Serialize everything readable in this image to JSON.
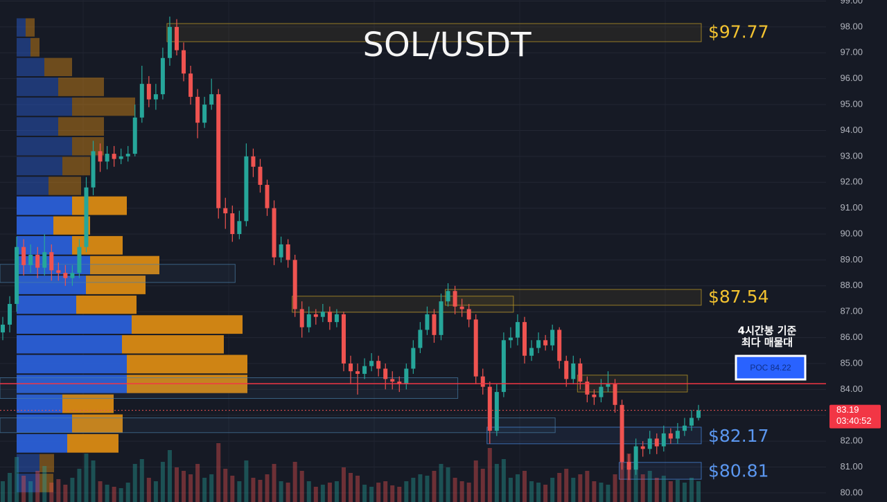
{
  "chart_data": {
    "type": "candlestick",
    "title": "SOL/USDT",
    "ylim": [
      79.65,
      99.04
    ],
    "yticks": [
      {
        "value": 80,
        "label": "80.00"
      },
      {
        "value": 81,
        "label": "81.00"
      },
      {
        "value": 82,
        "label": "82.00"
      },
      {
        "value": 83,
        "label": "83.00"
      },
      {
        "value": 84,
        "label": "84.00"
      },
      {
        "value": 85,
        "label": "85.00"
      },
      {
        "value": 86,
        "label": "86.00"
      },
      {
        "value": 87,
        "label": "87.00"
      },
      {
        "value": 88,
        "label": "88.00"
      },
      {
        "value": 89,
        "label": "89.00"
      },
      {
        "value": 90,
        "label": "90.00"
      },
      {
        "value": 91,
        "label": "91.00"
      },
      {
        "value": 92,
        "label": "92.00"
      },
      {
        "value": 93,
        "label": "93.00"
      },
      {
        "value": 94,
        "label": "94.00"
      },
      {
        "value": 95,
        "label": "95.00"
      },
      {
        "value": 96,
        "label": "96.00"
      },
      {
        "value": 97,
        "label": "97.00"
      },
      {
        "value": 98,
        "label": "98.00"
      },
      {
        "value": 99,
        "label": "99.00"
      }
    ],
    "grid": true,
    "up_color": "#26a69a",
    "down_color": "#ef5350",
    "candles": [
      [
        86.2,
        86.8,
        85.9,
        86.5
      ],
      [
        86.5,
        87.6,
        86.2,
        87.3
      ],
      [
        87.3,
        89.9,
        87.0,
        89.5
      ],
      [
        89.5,
        89.8,
        88.4,
        88.8
      ],
      [
        88.8,
        89.6,
        88.5,
        89.2
      ],
      [
        89.2,
        89.5,
        88.3,
        88.7
      ],
      [
        88.7,
        90.0,
        88.4,
        89.3
      ],
      [
        89.3,
        89.6,
        88.2,
        88.6
      ],
      [
        88.6,
        88.9,
        88.2,
        88.5
      ],
      [
        88.5,
        88.8,
        88.0,
        88.3
      ],
      [
        88.3,
        88.8,
        88.0,
        88.5
      ],
      [
        88.5,
        89.8,
        88.3,
        89.5
      ],
      [
        89.5,
        92.2,
        89.3,
        91.8
      ],
      [
        91.8,
        93.6,
        91.5,
        93.2
      ],
      [
        93.2,
        93.5,
        92.4,
        92.8
      ],
      [
        92.8,
        93.4,
        92.5,
        93.1
      ],
      [
        93.1,
        93.4,
        92.6,
        92.9
      ],
      [
        92.9,
        93.3,
        92.7,
        93.0
      ],
      [
        93.0,
        93.4,
        92.8,
        93.1
      ],
      [
        93.1,
        95.0,
        93.0,
        94.5
      ],
      [
        94.5,
        96.5,
        94.3,
        95.8
      ],
      [
        95.8,
        96.1,
        94.9,
        95.2
      ],
      [
        95.2,
        95.8,
        94.8,
        95.4
      ],
      [
        95.4,
        97.2,
        95.2,
        96.8
      ],
      [
        96.8,
        98.4,
        96.5,
        98.0
      ],
      [
        98.0,
        98.3,
        96.9,
        97.1
      ],
      [
        97.1,
        97.4,
        95.9,
        96.2
      ],
      [
        96.2,
        96.5,
        95.0,
        95.3
      ],
      [
        95.3,
        95.6,
        93.7,
        94.3
      ],
      [
        94.3,
        95.3,
        94.1,
        95.0
      ],
      [
        95.0,
        96.0,
        94.8,
        95.4
      ],
      [
        95.4,
        95.6,
        90.6,
        91.0
      ],
      [
        91.0,
        91.4,
        90.2,
        90.8
      ],
      [
        90.8,
        91.1,
        89.7,
        90.0
      ],
      [
        90.0,
        90.9,
        89.8,
        90.5
      ],
      [
        90.5,
        93.5,
        90.3,
        93.0
      ],
      [
        93.0,
        93.3,
        92.2,
        92.6
      ],
      [
        92.6,
        92.9,
        91.6,
        91.9
      ],
      [
        91.9,
        92.1,
        90.7,
        91.0
      ],
      [
        91.0,
        91.3,
        88.8,
        89.1
      ],
      [
        89.1,
        89.9,
        88.9,
        89.6
      ],
      [
        89.6,
        89.8,
        88.7,
        89.0
      ],
      [
        89.0,
        89.2,
        86.8,
        87.1
      ],
      [
        87.1,
        87.4,
        86.0,
        86.4
      ],
      [
        86.4,
        87.2,
        86.2,
        86.9
      ],
      [
        86.9,
        87.1,
        86.5,
        86.8
      ],
      [
        86.8,
        87.3,
        86.6,
        87.0
      ],
      [
        87.0,
        87.2,
        86.3,
        86.6
      ],
      [
        86.6,
        87.1,
        86.4,
        86.9
      ],
      [
        86.9,
        87.0,
        84.7,
        85.0
      ],
      [
        85.0,
        85.3,
        84.2,
        84.7
      ],
      [
        84.7,
        85.0,
        83.8,
        84.6
      ],
      [
        84.6,
        85.2,
        84.4,
        84.9
      ],
      [
        84.9,
        85.4,
        84.7,
        85.1
      ],
      [
        85.1,
        85.3,
        84.5,
        84.8
      ],
      [
        84.8,
        85.0,
        84.0,
        84.4
      ],
      [
        84.4,
        84.7,
        84.0,
        84.3
      ],
      [
        84.3,
        84.5,
        83.9,
        84.2
      ],
      [
        84.2,
        85.0,
        84.0,
        84.8
      ],
      [
        84.8,
        85.9,
        84.6,
        85.6
      ],
      [
        85.6,
        86.6,
        85.4,
        86.3
      ],
      [
        86.3,
        87.2,
        86.1,
        86.9
      ],
      [
        86.9,
        87.1,
        85.8,
        86.1
      ],
      [
        86.1,
        87.7,
        85.9,
        87.4
      ],
      [
        87.4,
        88.1,
        87.2,
        87.8
      ],
      [
        87.8,
        88.0,
        86.9,
        87.2
      ],
      [
        87.2,
        87.5,
        86.8,
        87.1
      ],
      [
        87.1,
        87.3,
        86.4,
        86.7
      ],
      [
        86.7,
        86.9,
        84.2,
        84.5
      ],
      [
        84.5,
        84.8,
        83.8,
        84.1
      ],
      [
        84.1,
        84.3,
        81.9,
        82.4
      ],
      [
        82.4,
        84.2,
        82.2,
        83.9
      ],
      [
        83.9,
        86.2,
        83.7,
        85.9
      ],
      [
        85.9,
        86.4,
        85.6,
        86.0
      ],
      [
        86.0,
        86.9,
        85.7,
        86.6
      ],
      [
        86.6,
        86.8,
        85.0,
        85.3
      ],
      [
        85.3,
        85.9,
        85.1,
        85.6
      ],
      [
        85.6,
        86.2,
        85.4,
        85.9
      ],
      [
        85.9,
        86.1,
        85.5,
        85.7
      ],
      [
        85.7,
        86.5,
        85.5,
        86.3
      ],
      [
        86.3,
        86.4,
        84.8,
        85.1
      ],
      [
        85.1,
        85.3,
        84.1,
        84.4
      ],
      [
        84.4,
        85.3,
        84.2,
        85.0
      ],
      [
        85.0,
        85.2,
        84.0,
        84.3
      ],
      [
        84.3,
        84.5,
        83.5,
        83.8
      ],
      [
        83.8,
        84.0,
        83.4,
        83.7
      ],
      [
        83.7,
        84.4,
        83.5,
        84.1
      ],
      [
        84.1,
        84.7,
        83.9,
        84.2
      ],
      [
        84.2,
        84.4,
        83.1,
        83.4
      ],
      [
        83.4,
        83.6,
        80.9,
        81.2
      ],
      [
        81.2,
        81.5,
        80.5,
        80.9
      ],
      [
        80.9,
        82.1,
        80.7,
        81.8
      ],
      [
        81.8,
        82.0,
        81.4,
        81.7
      ],
      [
        81.7,
        82.4,
        81.5,
        82.1
      ],
      [
        82.1,
        82.3,
        81.5,
        81.8
      ],
      [
        81.8,
        82.6,
        81.6,
        82.3
      ],
      [
        82.3,
        82.5,
        81.9,
        82.1
      ],
      [
        82.1,
        82.7,
        81.9,
        82.4
      ],
      [
        82.4,
        82.9,
        82.2,
        82.6
      ],
      [
        82.6,
        83.2,
        82.4,
        82.9
      ],
      [
        82.9,
        83.4,
        82.8,
        83.19
      ]
    ],
    "volumes": [
      30,
      42,
      65,
      38,
      30,
      45,
      52,
      28,
      33,
      25,
      35,
      48,
      70,
      60,
      30,
      25,
      22,
      20,
      28,
      55,
      62,
      35,
      30,
      58,
      75,
      50,
      45,
      40,
      55,
      35,
      40,
      85,
      48,
      38,
      30,
      60,
      35,
      32,
      40,
      55,
      30,
      28,
      58,
      45,
      30,
      22,
      25,
      28,
      30,
      50,
      42,
      38,
      25,
      22,
      28,
      30,
      24,
      22,
      30,
      35,
      40,
      38,
      45,
      55,
      50,
      35,
      30,
      28,
      60,
      48,
      78,
      55,
      62,
      35,
      40,
      45,
      30,
      28,
      25,
      35,
      42,
      48,
      35,
      40,
      45,
      30,
      28,
      25,
      40,
      80,
      70,
      55,
      40,
      45,
      35,
      38,
      30,
      32,
      28,
      35,
      30
    ],
    "profile": {
      "bins": [
        80.0,
        80.77,
        81.53,
        82.3,
        83.06,
        83.83,
        84.59,
        85.36,
        86.12,
        86.89,
        87.65,
        88.42,
        89.18,
        89.95,
        90.71,
        91.48,
        92.24,
        93.01,
        93.77,
        94.54,
        95.3,
        96.07,
        96.83,
        97.6,
        98.36
      ],
      "buy": [
        33,
        33,
        73,
        80,
        66,
        159,
        159,
        152,
        166,
        86,
        100,
        106,
        80,
        53,
        80,
        46,
        66,
        80,
        60,
        80,
        60,
        40,
        20,
        13
      ],
      "sell": [
        20,
        21,
        74,
        73,
        74,
        174,
        174,
        147,
        160,
        87,
        86,
        100,
        73,
        53,
        79,
        47,
        40,
        46,
        66,
        91,
        66,
        40,
        13,
        13
      ],
      "buy_color": "#2a5fd6",
      "sell_color": "#d98a13",
      "value_area": [
        81.53,
        91.48
      ]
    },
    "zones": [
      {
        "label": "$97.77",
        "value": 97.77,
        "low": 97.43,
        "high": 98.13,
        "start": 24,
        "end": 100,
        "color": "#c9a227"
      },
      {
        "label": "$87.54",
        "value": 87.54,
        "low": 87.25,
        "high": 87.86,
        "start": 64,
        "end": 100,
        "color": "#c9a227"
      },
      {
        "low": 83.9,
        "high": 84.55,
        "start": 83,
        "end": 98,
        "color": "#c9a227"
      },
      {
        "low": 86.98,
        "high": 87.6,
        "start": 42,
        "end": 73,
        "color": "#c9a227"
      },
      {
        "label": "$82.17",
        "value": 82.17,
        "low": 81.9,
        "high": 82.54,
        "start": 70,
        "end": 100,
        "color": "#4a8fe8"
      },
      {
        "label": "$80.81",
        "value": 80.81,
        "low": 80.53,
        "high": 81.18,
        "start": 89,
        "end": 100,
        "color": "#4a8fe8"
      },
      {
        "low": 88.13,
        "high": 88.83,
        "start": 0,
        "end": 33,
        "color": "#4a7fa8"
      },
      {
        "low": 83.65,
        "high": 84.45,
        "start": 0,
        "end": 65,
        "color": "#4a7fa8"
      },
      {
        "low": 82.33,
        "high": 82.9,
        "start": 0,
        "end": 79,
        "color": "#4a7fa8"
      }
    ],
    "poc": {
      "label": "POC 84.22",
      "value": 84.22,
      "color": "#f23645"
    },
    "poc_note": [
      "4시간봉 기준",
      "최다 매물대"
    ],
    "current_price": 83.19,
    "countdown": "03:40:52"
  }
}
